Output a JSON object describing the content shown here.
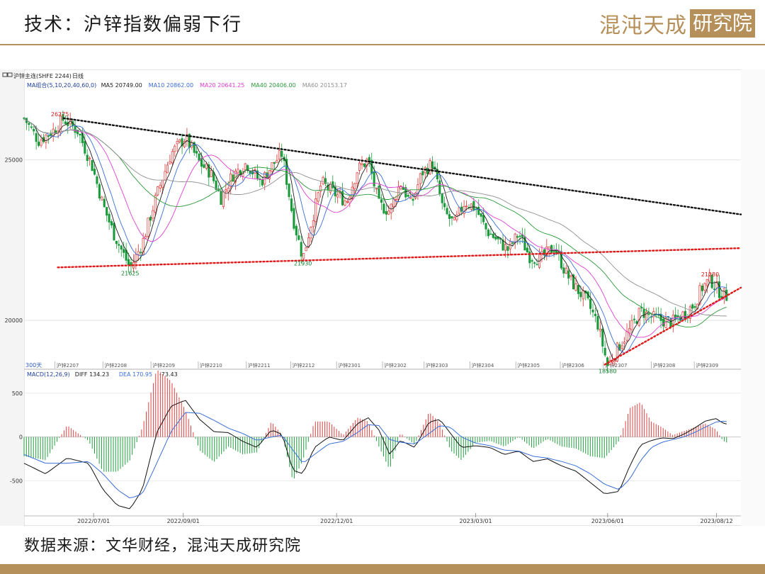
{
  "slide": {
    "title": "技术：沪锌指数偏弱下行",
    "logo_text_a": "混沌天成",
    "logo_text_b": "研究院",
    "source": "数据来源：文华财经，混沌天成研究院"
  },
  "chart_data": [
    {
      "type": "candlestick",
      "panel_header": {
        "instrument": "沪锌主连(SHFE 2244)",
        "period": "日线",
        "icons": [
          "frame-icon",
          "frame-icon"
        ]
      },
      "indicator_line": {
        "label": "MA组合(5,10,20,40,60,0)",
        "items": [
          {
            "text": "MA5 20749.00",
            "color": "#202020"
          },
          {
            "text": "MA10 20862.00",
            "color": "#3a6fd8"
          },
          {
            "text": "MA20 20641.25",
            "color": "#e040d0"
          },
          {
            "text": "MA40 20406.00",
            "color": "#2a9a3a"
          },
          {
            "text": "MA60 20153.17",
            "color": "#909090"
          }
        ]
      },
      "ylim": [
        18500,
        27200
      ],
      "y_ticks": [
        20000,
        25000
      ],
      "y_tick_labels": [
        "20000",
        "25000"
      ],
      "date_axis": {
        "labels": [
          "2022/07/01",
          "2022/09/01",
          "2022/12/01",
          "2023/03/01",
          "2023/06/01",
          "2023/08/12"
        ],
        "label_x": [
          0.097,
          0.222,
          0.436,
          0.63,
          0.814,
          0.966
        ]
      },
      "contract_labels": [
        {
          "text": "沪锌2207",
          "x": 0.043
        },
        {
          "text": "沪锌2208",
          "x": 0.11
        },
        {
          "text": "沪锌2209",
          "x": 0.177
        },
        {
          "text": "沪锌2210",
          "x": 0.243
        },
        {
          "text": "沪锌2211",
          "x": 0.31
        },
        {
          "text": "沪锌2212",
          "x": 0.372
        },
        {
          "text": "沪锌2301",
          "x": 0.436
        },
        {
          "text": "沪锌2302",
          "x": 0.5
        },
        {
          "text": "沪锌2303",
          "x": 0.558
        },
        {
          "text": "沪锌2304",
          "x": 0.622
        },
        {
          "text": "沪锌2305",
          "x": 0.686
        },
        {
          "text": "沪锌2306",
          "x": 0.748
        },
        {
          "text": "沪锌2307",
          "x": 0.808
        },
        {
          "text": "沪锌2308",
          "x": 0.875
        },
        {
          "text": "沪锌2309",
          "x": 0.935
        }
      ],
      "period_tag": "300天",
      "price_annotations": [
        {
          "text": "26275",
          "x": 0.05,
          "y": 26275,
          "color": "#d02020"
        },
        {
          "text": "21625",
          "x": 0.148,
          "y": 21625,
          "color": "#108030"
        },
        {
          "text": "21930",
          "x": 0.389,
          "y": 21930,
          "color": "#108030"
        },
        {
          "text": "21280",
          "x": 0.957,
          "y": 21280,
          "color": "#d02020"
        },
        {
          "text": "18580",
          "x": 0.814,
          "y": 18580,
          "color": "#108030"
        }
      ],
      "price_path": [
        [
          0.0,
          26300
        ],
        [
          0.02,
          25600
        ],
        [
          0.04,
          25900
        ],
        [
          0.055,
          26275
        ],
        [
          0.075,
          25900
        ],
        [
          0.095,
          24800
        ],
        [
          0.11,
          23600
        ],
        [
          0.125,
          22700
        ],
        [
          0.148,
          21625
        ],
        [
          0.165,
          22400
        ],
        [
          0.185,
          23900
        ],
        [
          0.205,
          25200
        ],
        [
          0.225,
          25700
        ],
        [
          0.245,
          24900
        ],
        [
          0.26,
          24600
        ],
        [
          0.275,
          23800
        ],
        [
          0.29,
          24500
        ],
        [
          0.31,
          24900
        ],
        [
          0.33,
          24300
        ],
        [
          0.345,
          24800
        ],
        [
          0.36,
          25200
        ],
        [
          0.375,
          23200
        ],
        [
          0.389,
          21930
        ],
        [
          0.4,
          23000
        ],
        [
          0.415,
          24300
        ],
        [
          0.43,
          24000
        ],
        [
          0.45,
          23700
        ],
        [
          0.465,
          24700
        ],
        [
          0.48,
          25000
        ],
        [
          0.495,
          23600
        ],
        [
          0.51,
          23400
        ],
        [
          0.525,
          24300
        ],
        [
          0.54,
          23600
        ],
        [
          0.555,
          24600
        ],
        [
          0.57,
          24900
        ],
        [
          0.585,
          23400
        ],
        [
          0.6,
          23000
        ],
        [
          0.615,
          23700
        ],
        [
          0.63,
          23500
        ],
        [
          0.645,
          22800
        ],
        [
          0.66,
          22500
        ],
        [
          0.675,
          22200
        ],
        [
          0.69,
          22700
        ],
        [
          0.705,
          22000
        ],
        [
          0.72,
          21900
        ],
        [
          0.74,
          22300
        ],
        [
          0.755,
          21500
        ],
        [
          0.77,
          21000
        ],
        [
          0.785,
          20600
        ],
        [
          0.8,
          19900
        ],
        [
          0.814,
          18580
        ],
        [
          0.83,
          19200
        ],
        [
          0.845,
          19700
        ],
        [
          0.86,
          20300
        ],
        [
          0.875,
          20100
        ],
        [
          0.89,
          20000
        ],
        [
          0.905,
          19950
        ],
        [
          0.92,
          20200
        ],
        [
          0.935,
          20500
        ],
        [
          0.945,
          21000
        ],
        [
          0.957,
          21280
        ],
        [
          0.97,
          20900
        ],
        [
          0.98,
          20750
        ]
      ],
      "trendlines": [
        {
          "style": "dotted",
          "color": "#101010",
          "from": [
            0.055,
            26300
          ],
          "to": [
            1.0,
            23300
          ]
        },
        {
          "style": "dotted",
          "color": "#e01818",
          "from": [
            0.047,
            21650
          ],
          "to": [
            1.0,
            22250
          ]
        },
        {
          "style": "dotted",
          "color": "#e01818",
          "from": [
            0.81,
            18620
          ],
          "to": [
            1.0,
            21020
          ]
        }
      ]
    },
    {
      "type": "bar+line",
      "indicator_line": {
        "label": "MACD(12,26,9)",
        "items": [
          {
            "text": "DIFF 134.23",
            "color": "#202020"
          },
          {
            "text": "DEA 170.95",
            "color": "#3a6fd8"
          },
          {
            "text": "-73.43",
            "color": "#202020"
          }
        ]
      },
      "ylim": [
        -900,
        700
      ],
      "y_ticks": [
        500,
        0,
        -500
      ],
      "y_tick_labels": [
        "500",
        "0",
        "-500"
      ],
      "diff_path": [
        [
          0.0,
          -300
        ],
        [
          0.03,
          -420
        ],
        [
          0.06,
          -240
        ],
        [
          0.09,
          -300
        ],
        [
          0.11,
          -600
        ],
        [
          0.13,
          -780
        ],
        [
          0.148,
          -820
        ],
        [
          0.165,
          -600
        ],
        [
          0.185,
          50
        ],
        [
          0.205,
          350
        ],
        [
          0.225,
          420
        ],
        [
          0.245,
          200
        ],
        [
          0.265,
          60
        ],
        [
          0.285,
          50
        ],
        [
          0.305,
          -50
        ],
        [
          0.325,
          -120
        ],
        [
          0.345,
          80
        ],
        [
          0.36,
          30
        ],
        [
          0.375,
          -380
        ],
        [
          0.389,
          -420
        ],
        [
          0.405,
          -120
        ],
        [
          0.425,
          0
        ],
        [
          0.445,
          -40
        ],
        [
          0.465,
          150
        ],
        [
          0.48,
          220
        ],
        [
          0.495,
          80
        ],
        [
          0.51,
          -200
        ],
        [
          0.525,
          -40
        ],
        [
          0.545,
          -120
        ],
        [
          0.565,
          170
        ],
        [
          0.58,
          200
        ],
        [
          0.595,
          40
        ],
        [
          0.61,
          -120
        ],
        [
          0.63,
          -100
        ],
        [
          0.65,
          -120
        ],
        [
          0.67,
          -200
        ],
        [
          0.69,
          -160
        ],
        [
          0.71,
          -280
        ],
        [
          0.73,
          -250
        ],
        [
          0.75,
          -330
        ],
        [
          0.77,
          -390
        ],
        [
          0.79,
          -520
        ],
        [
          0.81,
          -650
        ],
        [
          0.83,
          -620
        ],
        [
          0.845,
          -330
        ],
        [
          0.86,
          -90
        ],
        [
          0.875,
          -40
        ],
        [
          0.89,
          -10
        ],
        [
          0.905,
          -20
        ],
        [
          0.92,
          30
        ],
        [
          0.935,
          100
        ],
        [
          0.95,
          180
        ],
        [
          0.965,
          210
        ],
        [
          0.975,
          160
        ],
        [
          0.985,
          134
        ]
      ],
      "dea_path": [
        [
          0.0,
          -200
        ],
        [
          0.03,
          -300
        ],
        [
          0.06,
          -300
        ],
        [
          0.09,
          -280
        ],
        [
          0.11,
          -420
        ],
        [
          0.13,
          -600
        ],
        [
          0.148,
          -700
        ],
        [
          0.165,
          -650
        ],
        [
          0.185,
          -300
        ],
        [
          0.205,
          60
        ],
        [
          0.225,
          280
        ],
        [
          0.245,
          270
        ],
        [
          0.265,
          190
        ],
        [
          0.285,
          100
        ],
        [
          0.305,
          40
        ],
        [
          0.325,
          -40
        ],
        [
          0.345,
          0
        ],
        [
          0.36,
          20
        ],
        [
          0.375,
          -150
        ],
        [
          0.389,
          -300
        ],
        [
          0.405,
          -200
        ],
        [
          0.425,
          -80
        ],
        [
          0.445,
          -50
        ],
        [
          0.465,
          50
        ],
        [
          0.48,
          140
        ],
        [
          0.495,
          130
        ],
        [
          0.51,
          -30
        ],
        [
          0.525,
          -60
        ],
        [
          0.545,
          -80
        ],
        [
          0.565,
          40
        ],
        [
          0.58,
          130
        ],
        [
          0.595,
          110
        ],
        [
          0.61,
          0
        ],
        [
          0.63,
          -70
        ],
        [
          0.65,
          -100
        ],
        [
          0.67,
          -150
        ],
        [
          0.69,
          -160
        ],
        [
          0.71,
          -220
        ],
        [
          0.73,
          -240
        ],
        [
          0.75,
          -280
        ],
        [
          0.77,
          -330
        ],
        [
          0.79,
          -420
        ],
        [
          0.81,
          -540
        ],
        [
          0.83,
          -600
        ],
        [
          0.845,
          -480
        ],
        [
          0.86,
          -270
        ],
        [
          0.875,
          -120
        ],
        [
          0.89,
          -60
        ],
        [
          0.905,
          -30
        ],
        [
          0.92,
          0
        ],
        [
          0.935,
          50
        ],
        [
          0.95,
          110
        ],
        [
          0.965,
          170
        ],
        [
          0.975,
          180
        ],
        [
          0.985,
          171
        ]
      ]
    }
  ]
}
